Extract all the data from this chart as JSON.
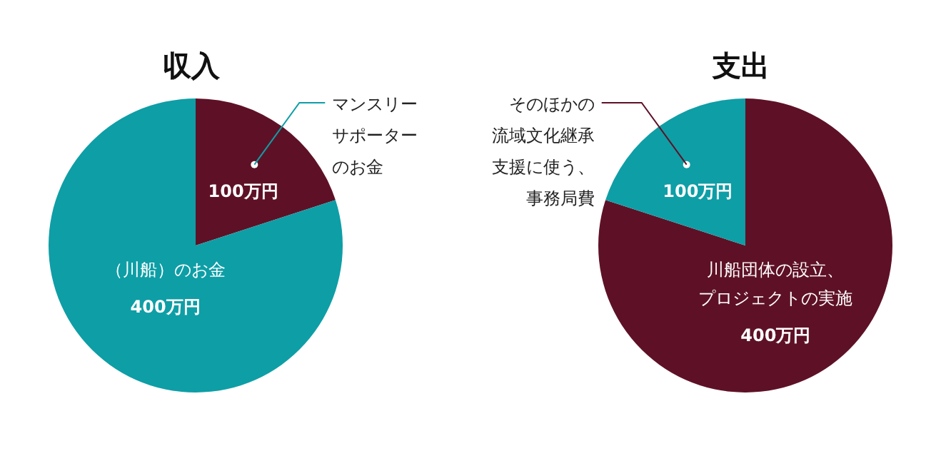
{
  "chart_data": [
    {
      "type": "pie",
      "title": "収入",
      "categories": [
        "マンスリーサポーターのお金",
        "（川船）のお金"
      ],
      "values": [
        100,
        400
      ],
      "colors": [
        "#5e1126",
        "#0e9ea6"
      ],
      "value_labels": [
        "100万円",
        "400万円"
      ]
    },
    {
      "type": "pie",
      "title": "支出",
      "categories": [
        "川船団体の設立、プロジェクトの実施",
        "そのほかの流域文化継承支援に使う、事務局費"
      ],
      "values": [
        400,
        100
      ],
      "colors": [
        "#5e1126",
        "#0e9ea6"
      ],
      "value_labels": [
        "400万円",
        "100万円"
      ]
    }
  ]
}
